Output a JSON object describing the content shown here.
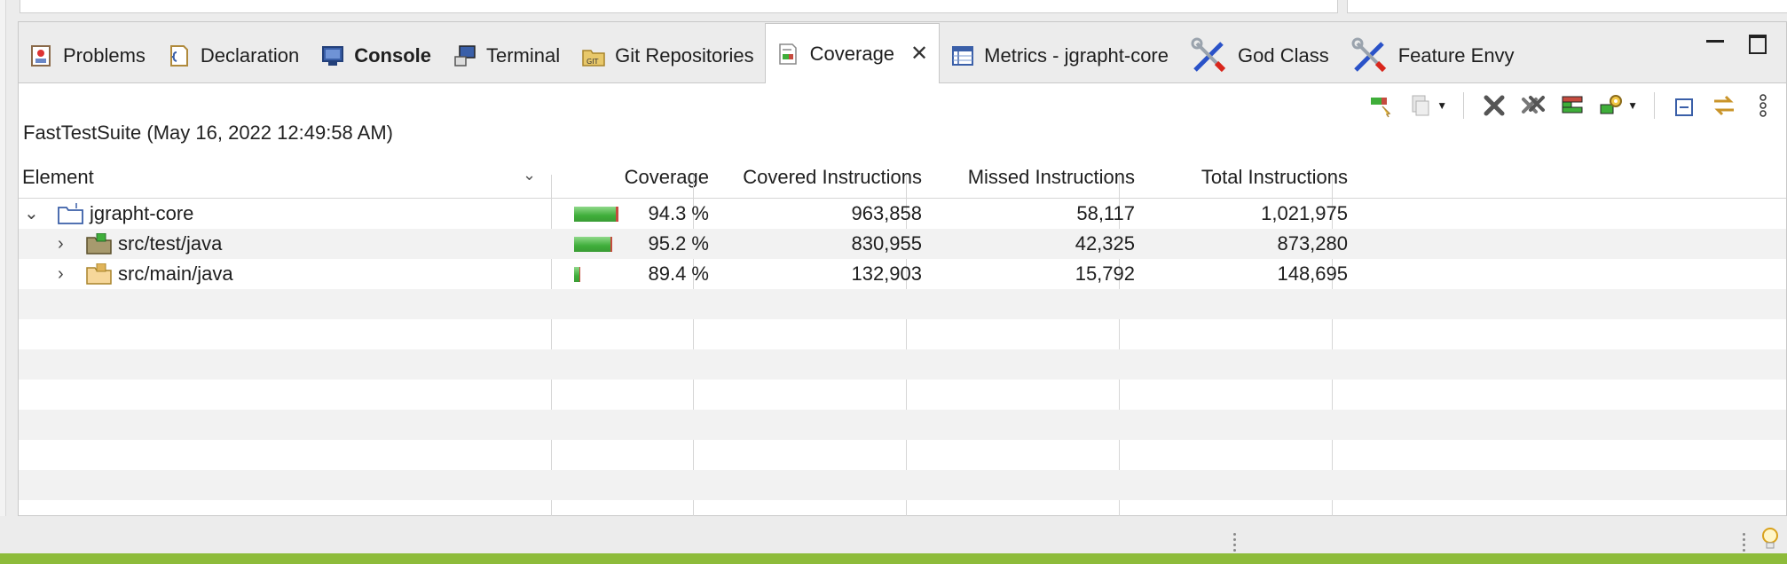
{
  "tabs": [
    {
      "label": "Problems",
      "icon": "problems-icon"
    },
    {
      "label": "Declaration",
      "icon": "declaration-icon"
    },
    {
      "label": "Console",
      "icon": "console-icon"
    },
    {
      "label": "Terminal",
      "icon": "terminal-icon"
    },
    {
      "label": "Git Repositories",
      "icon": "git-icon"
    },
    {
      "label": "Coverage",
      "icon": "coverage-icon",
      "active": true
    },
    {
      "label": "Metrics - jgrapht-core",
      "icon": "metrics-icon"
    },
    {
      "label": "God Class",
      "icon": "tools-icon"
    },
    {
      "label": "Feature Envy",
      "icon": "tools-icon"
    }
  ],
  "session": "FastTestSuite (May 16, 2022 12:49:58 AM)",
  "columns": {
    "element": "Element",
    "coverage": "Coverage",
    "covered": "Covered Instructions",
    "missed": "Missed Instructions",
    "total": "Total Instructions"
  },
  "rows": [
    {
      "name": "jgrapht-core",
      "coverage": "94.3 %",
      "coverage_value": 94.3,
      "covered": "963,858",
      "missed": "58,117",
      "total": "1,021,975",
      "bar_scale": 1.0
    },
    {
      "name": "src/test/java",
      "coverage": "95.2 %",
      "coverage_value": 95.2,
      "covered": "830,955",
      "missed": "42,325",
      "total": "873,280",
      "bar_scale": 0.855
    },
    {
      "name": "src/main/java",
      "coverage": "89.4 %",
      "coverage_value": 89.4,
      "covered": "132,903",
      "missed": "15,792",
      "total": "148,695",
      "bar_scale": 0.146
    }
  ],
  "colors": {
    "covered": "#3fae3a",
    "missed": "#c64b3f",
    "accent_bar": "#8dbb3a"
  }
}
